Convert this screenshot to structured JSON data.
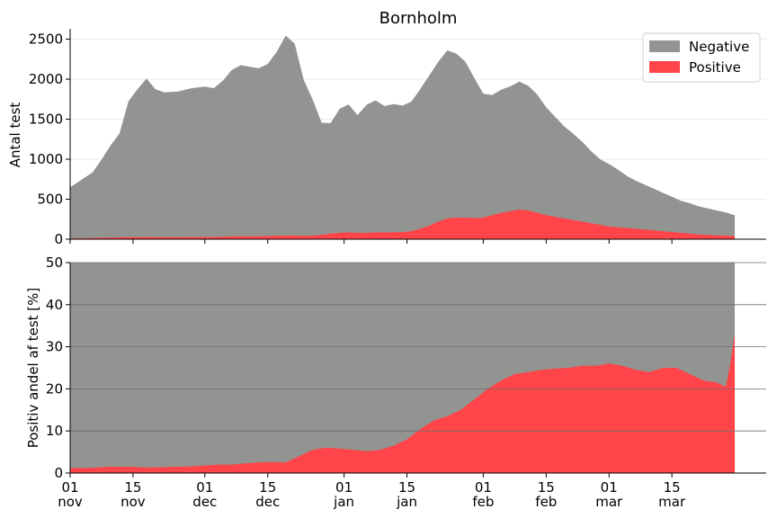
{
  "chart_data": [
    {
      "type": "area",
      "title": "Bornholm",
      "ylabel": "Antal test",
      "ylim": [
        0,
        2630
      ],
      "yticks": [
        0,
        500,
        1000,
        1500,
        2000,
        2500
      ],
      "legend": {
        "placement": "top-right",
        "entries": [
          "Negative",
          "Positive"
        ]
      },
      "colors": {
        "Negative": "#929491",
        "Positive": "#ff4549"
      },
      "x_start": "2020-11-01",
      "x_end": "2021-03-29",
      "x": [
        "2020-11-01",
        "2020-11-04",
        "2020-11-06",
        "2020-11-08",
        "2020-11-10",
        "2020-11-12",
        "2020-11-14",
        "2020-11-16",
        "2020-11-18",
        "2020-11-20",
        "2020-11-22",
        "2020-11-25",
        "2020-11-28",
        "2020-12-01",
        "2020-12-03",
        "2020-12-05",
        "2020-12-07",
        "2020-12-09",
        "2020-12-11",
        "2020-12-13",
        "2020-12-15",
        "2020-12-17",
        "2020-12-19",
        "2020-12-21",
        "2020-12-23",
        "2020-12-25",
        "2020-12-27",
        "2020-12-29",
        "2020-12-31",
        "2021-01-02",
        "2021-01-04",
        "2021-01-06",
        "2021-01-08",
        "2021-01-10",
        "2021-01-12",
        "2021-01-14",
        "2021-01-16",
        "2021-01-18",
        "2021-01-20",
        "2021-01-22",
        "2021-01-24",
        "2021-01-26",
        "2021-01-28",
        "2021-01-30",
        "2021-02-01",
        "2021-02-03",
        "2021-02-05",
        "2021-02-07",
        "2021-02-09",
        "2021-02-11",
        "2021-02-13",
        "2021-02-15",
        "2021-02-17",
        "2021-02-19",
        "2021-02-21",
        "2021-02-23",
        "2021-02-25",
        "2021-02-27",
        "2021-03-01",
        "2021-03-03",
        "2021-03-05",
        "2021-03-07",
        "2021-03-09",
        "2021-03-11",
        "2021-03-13",
        "2021-03-15",
        "2021-03-17",
        "2021-03-19",
        "2021-03-21",
        "2021-03-23",
        "2021-03-25",
        "2021-03-27",
        "2021-03-29"
      ],
      "series": [
        {
          "name": "Negative",
          "values": [
            640,
            750,
            820,
            980,
            1150,
            1300,
            1700,
            1850,
            1980,
            1850,
            1810,
            1820,
            1860,
            1880,
            1860,
            1950,
            2080,
            2140,
            2120,
            2100,
            2150,
            2300,
            2500,
            2400,
            1950,
            1700,
            1400,
            1380,
            1550,
            1600,
            1470,
            1600,
            1650,
            1580,
            1600,
            1580,
            1620,
            1750,
            1880,
            2000,
            2100,
            2050,
            1950,
            1750,
            1550,
            1500,
            1540,
            1560,
            1600,
            1560,
            1480,
            1350,
            1250,
            1150,
            1080,
            1000,
            900,
            820,
            780,
            720,
            650,
            600,
            560,
            520,
            480,
            440,
            400,
            380,
            350,
            330,
            310,
            290,
            260
          ]
        },
        {
          "name": "Positive",
          "values": [
            10,
            12,
            15,
            18,
            20,
            22,
            25,
            25,
            27,
            25,
            25,
            25,
            27,
            28,
            28,
            30,
            35,
            36,
            35,
            37,
            40,
            42,
            45,
            45,
            42,
            45,
            55,
            70,
            80,
            85,
            80,
            80,
            85,
            85,
            88,
            90,
            100,
            130,
            170,
            220,
            260,
            270,
            270,
            265,
            270,
            300,
            330,
            350,
            370,
            360,
            330,
            300,
            280,
            260,
            240,
            220,
            200,
            180,
            160,
            150,
            140,
            130,
            120,
            110,
            100,
            90,
            80,
            70,
            60,
            55,
            50,
            45,
            40
          ]
        }
      ]
    },
    {
      "type": "area",
      "ylabel": "Positiv andel af test [%]",
      "ylim": [
        0,
        50
      ],
      "yticks": [
        0,
        10,
        20,
        30,
        40,
        50
      ],
      "colors": {
        "background": "#929491",
        "Positive": "#ff4549"
      },
      "x_start": "2020-11-01",
      "x_end": "2021-03-29",
      "x_tick_labels": [
        {
          "day": "01",
          "month": "nov"
        },
        {
          "day": "15",
          "month": "nov"
        },
        {
          "day": "01",
          "month": "dec"
        },
        {
          "day": "15",
          "month": "dec"
        },
        {
          "day": "01",
          "month": "jan"
        },
        {
          "day": "15",
          "month": "jan"
        },
        {
          "day": "01",
          "month": "feb"
        },
        {
          "day": "15",
          "month": "feb"
        },
        {
          "day": "01",
          "month": "mar"
        },
        {
          "day": "15",
          "month": "mar"
        }
      ],
      "x": [
        "2020-11-01",
        "2020-11-04",
        "2020-11-07",
        "2020-11-10",
        "2020-11-13",
        "2020-11-16",
        "2020-11-19",
        "2020-11-22",
        "2020-11-25",
        "2020-11-28",
        "2020-12-01",
        "2020-12-04",
        "2020-12-07",
        "2020-12-10",
        "2020-12-13",
        "2020-12-16",
        "2020-12-19",
        "2020-12-22",
        "2020-12-25",
        "2020-12-28",
        "2020-12-31",
        "2021-01-03",
        "2021-01-06",
        "2021-01-09",
        "2021-01-12",
        "2021-01-15",
        "2021-01-18",
        "2021-01-21",
        "2021-01-24",
        "2021-01-27",
        "2021-01-30",
        "2021-02-02",
        "2021-02-05",
        "2021-02-08",
        "2021-02-11",
        "2021-02-14",
        "2021-02-17",
        "2021-02-20",
        "2021-02-23",
        "2021-02-26",
        "2021-03-01",
        "2021-03-04",
        "2021-03-07",
        "2021-03-10",
        "2021-03-13",
        "2021-03-16",
        "2021-03-19",
        "2021-03-22",
        "2021-03-25",
        "2021-03-27",
        "2021-03-28",
        "2021-03-29"
      ],
      "series": [
        {
          "name": "Positive",
          "values": [
            1.2,
            1.2,
            1.3,
            1.5,
            1.5,
            1.4,
            1.3,
            1.4,
            1.5,
            1.6,
            1.8,
            2.0,
            2.0,
            2.3,
            2.5,
            2.6,
            2.5,
            4.0,
            5.5,
            6.0,
            5.8,
            5.5,
            5.2,
            5.5,
            6.5,
            8.0,
            10.5,
            12.5,
            13.5,
            15.0,
            17.5,
            20.0,
            22.0,
            23.5,
            24.0,
            24.5,
            24.8,
            25.0,
            25.5,
            25.5,
            26.0,
            25.5,
            24.5,
            24.0,
            25.0,
            25.0,
            23.5,
            22.0,
            21.5,
            20.5,
            26.0,
            33.0
          ]
        }
      ]
    }
  ]
}
